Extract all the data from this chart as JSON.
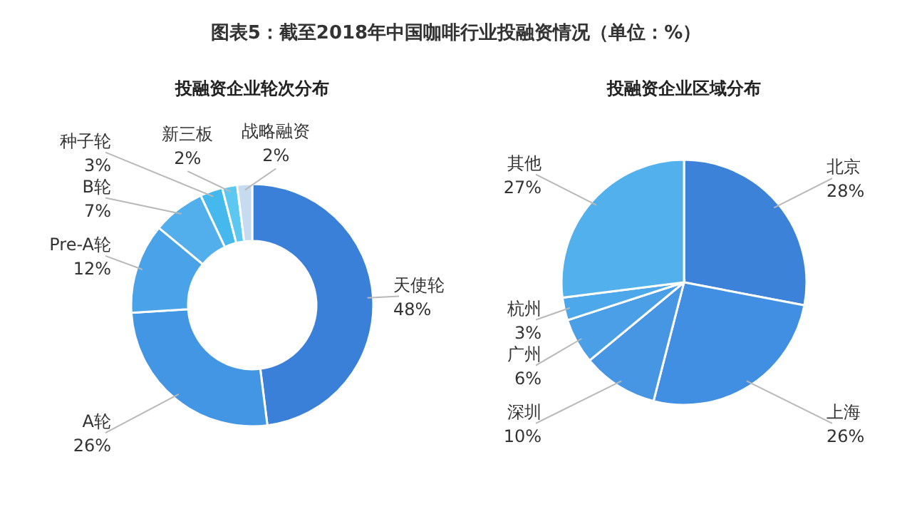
{
  "chart_data": [
    {
      "type": "donut",
      "title": "图表5：截至2018年中国咖啡行业投融资情况（单位：%）",
      "subtitle": "投融资企业轮次分布",
      "categories": [
        "天使轮",
        "A轮",
        "Pre-A轮",
        "B轮",
        "种子轮",
        "新三板",
        "战略融资"
      ],
      "values": [
        48,
        26,
        12,
        7,
        3,
        2,
        2
      ],
      "colors": [
        "#3b80d8",
        "#4296e4",
        "#4aa3e8",
        "#52afeb",
        "#45b9ee",
        "#5cc8f2",
        "#c6dbf0"
      ],
      "value_labels": [
        "48%",
        "26%",
        "12%",
        "7%",
        "3%",
        "2%",
        "2%"
      ]
    },
    {
      "type": "pie",
      "subtitle": "投融资企业区域分布",
      "categories": [
        "北京",
        "上海",
        "深圳",
        "广州",
        "杭州",
        "其他"
      ],
      "values": [
        28,
        26,
        10,
        6,
        3,
        27
      ],
      "colors": [
        "#3c82d8",
        "#418fe2",
        "#4796e3",
        "#4a9fe6",
        "#4ca8ea",
        "#52b0ec"
      ],
      "value_labels": [
        "28%",
        "26%",
        "10%",
        "6%",
        "3%",
        "27%"
      ]
    }
  ]
}
